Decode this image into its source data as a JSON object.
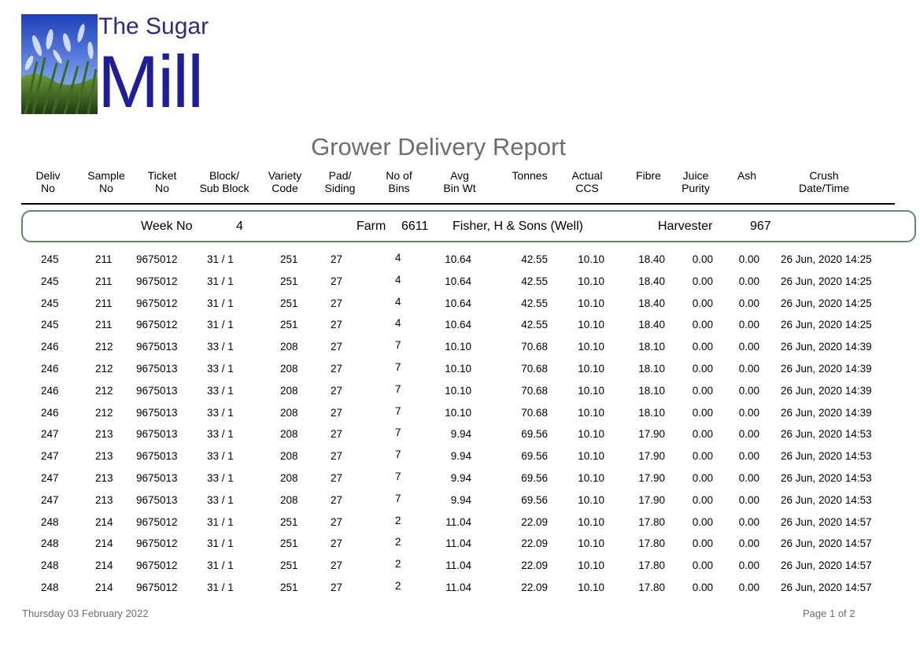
{
  "logo": {
    "line1": "The Sugar",
    "line2": "Mill"
  },
  "report": {
    "title": "Grower Delivery Report"
  },
  "columns": [
    {
      "line1": "Deliv",
      "line2": "No"
    },
    {
      "line1": "Sample",
      "line2": "No"
    },
    {
      "line1": "Ticket",
      "line2": "No"
    },
    {
      "line1": "Block/",
      "line2": "Sub Block"
    },
    {
      "line1": "Variety",
      "line2": "Code"
    },
    {
      "line1": "Pad/",
      "line2": "Siding"
    },
    {
      "line1": "No of",
      "line2": "Bins"
    },
    {
      "line1": "Avg",
      "line2": "Bin Wt"
    },
    {
      "line1": "Tonnes",
      "line2": ""
    },
    {
      "line1": "Actual",
      "line2": "CCS"
    },
    {
      "line1": "Fibre",
      "line2": ""
    },
    {
      "line1": "Juice",
      "line2": "Purity"
    },
    {
      "line1": "Ash",
      "line2": ""
    },
    {
      "line1": "Crush",
      "line2": "Date/Time"
    }
  ],
  "group": {
    "week_label": "Week No",
    "week_value": "4",
    "farm_label": "Farm",
    "farm_value": "6611",
    "farm_name": "Fisher, H & Sons (Well)",
    "harvester_label": "Harvester",
    "harvester_value": "967"
  },
  "rows": [
    [
      "245",
      "211",
      "9675012",
      "31 / 1",
      "251",
      "27",
      "4",
      "10.64",
      "42.55",
      "10.10",
      "18.40",
      "0.00",
      "0.00",
      "26 Jun, 2020 14:25"
    ],
    [
      "245",
      "211",
      "9675012",
      "31 / 1",
      "251",
      "27",
      "4",
      "10.64",
      "42.55",
      "10.10",
      "18.40",
      "0.00",
      "0.00",
      "26 Jun, 2020 14:25"
    ],
    [
      "245",
      "211",
      "9675012",
      "31 / 1",
      "251",
      "27",
      "4",
      "10.64",
      "42.55",
      "10.10",
      "18.40",
      "0.00",
      "0.00",
      "26 Jun, 2020 14:25"
    ],
    [
      "245",
      "211",
      "9675012",
      "31 / 1",
      "251",
      "27",
      "4",
      "10.64",
      "42.55",
      "10.10",
      "18.40",
      "0.00",
      "0.00",
      "26 Jun, 2020 14:25"
    ],
    [
      "246",
      "212",
      "9675013",
      "33 / 1",
      "208",
      "27",
      "7",
      "10.10",
      "70.68",
      "10.10",
      "18.10",
      "0.00",
      "0.00",
      "26 Jun, 2020 14:39"
    ],
    [
      "246",
      "212",
      "9675013",
      "33 / 1",
      "208",
      "27",
      "7",
      "10.10",
      "70.68",
      "10.10",
      "18.10",
      "0.00",
      "0.00",
      "26 Jun, 2020 14:39"
    ],
    [
      "246",
      "212",
      "9675013",
      "33 / 1",
      "208",
      "27",
      "7",
      "10.10",
      "70.68",
      "10.10",
      "18.10",
      "0.00",
      "0.00",
      "26 Jun, 2020 14:39"
    ],
    [
      "246",
      "212",
      "9675013",
      "33 / 1",
      "208",
      "27",
      "7",
      "10.10",
      "70.68",
      "10.10",
      "18.10",
      "0.00",
      "0.00",
      "26 Jun, 2020 14:39"
    ],
    [
      "247",
      "213",
      "9675013",
      "33 / 1",
      "208",
      "27",
      "7",
      "9.94",
      "69.56",
      "10.10",
      "17.90",
      "0.00",
      "0.00",
      "26 Jun, 2020 14:53"
    ],
    [
      "247",
      "213",
      "9675013",
      "33 / 1",
      "208",
      "27",
      "7",
      "9.94",
      "69.56",
      "10.10",
      "17.90",
      "0.00",
      "0.00",
      "26 Jun, 2020 14:53"
    ],
    [
      "247",
      "213",
      "9675013",
      "33 / 1",
      "208",
      "27",
      "7",
      "9.94",
      "69.56",
      "10.10",
      "17.90",
      "0.00",
      "0.00",
      "26 Jun, 2020 14:53"
    ],
    [
      "247",
      "213",
      "9675013",
      "33 / 1",
      "208",
      "27",
      "7",
      "9.94",
      "69.56",
      "10.10",
      "17.90",
      "0.00",
      "0.00",
      "26 Jun, 2020 14:53"
    ],
    [
      "248",
      "214",
      "9675012",
      "31 / 1",
      "251",
      "27",
      "2",
      "11.04",
      "22.09",
      "10.10",
      "17.80",
      "0.00",
      "0.00",
      "26 Jun, 2020 14:57"
    ],
    [
      "248",
      "214",
      "9675012",
      "31 / 1",
      "251",
      "27",
      "2",
      "11.04",
      "22.09",
      "10.10",
      "17.80",
      "0.00",
      "0.00",
      "26 Jun, 2020 14:57"
    ],
    [
      "248",
      "214",
      "9675012",
      "31 / 1",
      "251",
      "27",
      "2",
      "11.04",
      "22.09",
      "10.10",
      "17.80",
      "0.00",
      "0.00",
      "26 Jun, 2020 14:57"
    ],
    [
      "248",
      "214",
      "9675012",
      "31 / 1",
      "251",
      "27",
      "2",
      "11.04",
      "22.09",
      "10.10",
      "17.80",
      "0.00",
      "0.00",
      "26 Jun, 2020 14:57"
    ]
  ],
  "footer": {
    "date": "Thursday 03 February 2022",
    "page": "Page 1 of 2"
  },
  "colors": {
    "logo_text": "#1e1e9a",
    "title": "#6e6e6e",
    "group_border": "#5f8a63"
  }
}
